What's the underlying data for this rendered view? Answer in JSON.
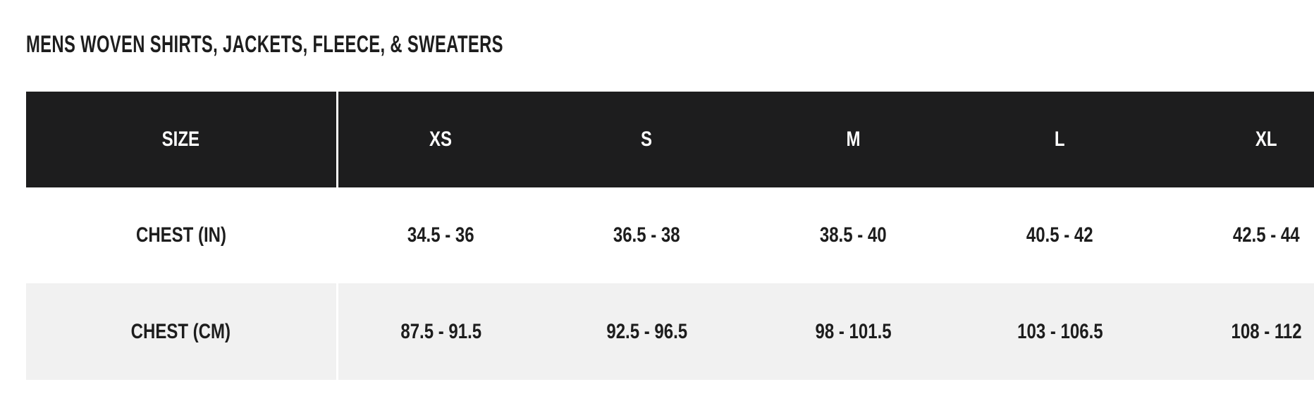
{
  "page": {
    "title": "MENS WOVEN SHIRTS, JACKETS, FLEECE, & SWEATERS"
  },
  "size_chart": {
    "columns": [
      "SIZE",
      "XS",
      "S",
      "M",
      "L",
      "XL"
    ],
    "rows": [
      {
        "label": "CHEST (IN)",
        "values": [
          "34.5 - 36",
          "36.5 - 38",
          "38.5 - 40",
          "40.5 - 42",
          "42.5 - 44"
        ]
      },
      {
        "label": "CHEST (CM)",
        "values": [
          "87.5 - 91.5",
          "92.5 - 96.5",
          "98 - 101.5",
          "103 - 106.5",
          "108 - 112"
        ]
      }
    ],
    "colors": {
      "header_bg": "#1d1d1e",
      "header_text": "#ffffff",
      "alt_row_bg": "#f1f1f1",
      "body_text": "#1d1d1d",
      "column_divider": "#ffffff"
    }
  }
}
